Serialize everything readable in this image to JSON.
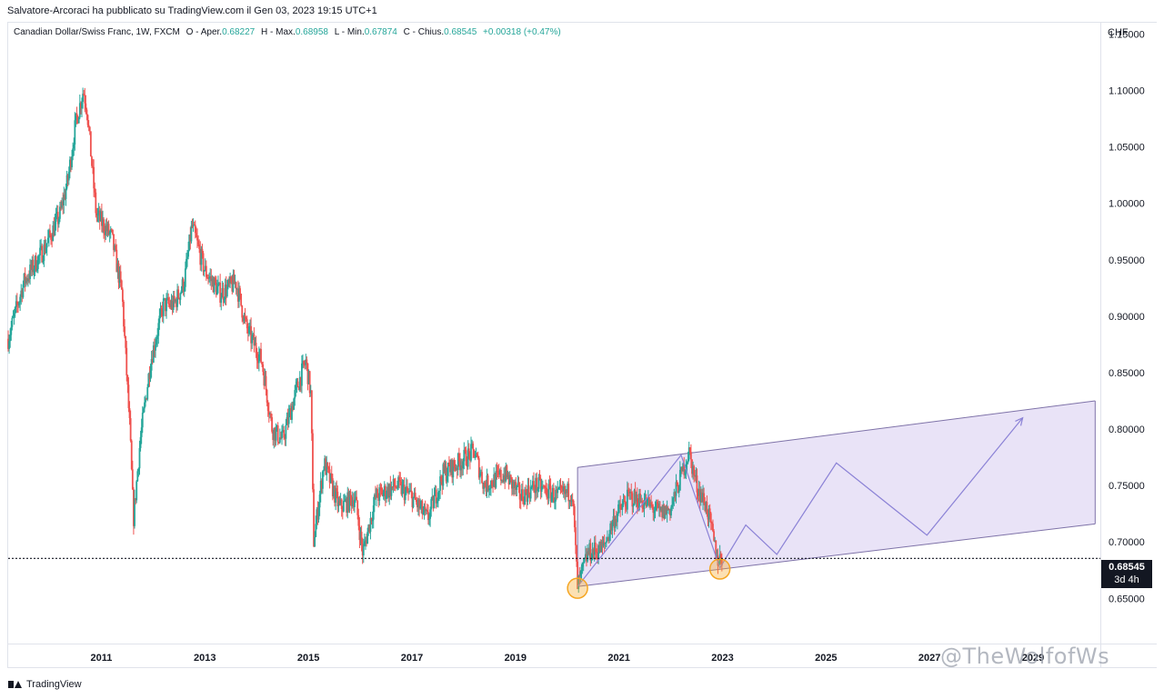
{
  "header": {
    "attribution": "Salvatore-Arcoraci ha pubblicato su TradingView.com il Gen 03, 2023 19:15 UTC+1"
  },
  "legend": {
    "symbol": "Canadian Dollar/Swiss Franc, 1W, FXCM",
    "open_label": "O - Aper.",
    "open": "0.68227",
    "high_label": "H - Max.",
    "high": "0.68958",
    "low_label": "L - Min.",
    "low": "0.67874",
    "close_label": "C - Chius.",
    "close": "0.68545",
    "change": "+0.00318 (+0.47%)"
  },
  "price_axis": {
    "currency": "CHF",
    "labels": [
      "1.15000",
      "1.10000",
      "1.05000",
      "1.00000",
      "0.95000",
      "0.90000",
      "0.85000",
      "0.80000",
      "0.75000",
      "0.70000",
      "0.65000"
    ],
    "last_price": "0.68545",
    "countdown": "3d 4h"
  },
  "time_axis": {
    "labels": [
      "2011",
      "2013",
      "2015",
      "2017",
      "2019",
      "2021",
      "2023",
      "2025",
      "2027",
      "2029"
    ]
  },
  "footer": {
    "logo_text": "TradingView",
    "watermark": "@TheWolfofWs"
  },
  "colors": {
    "up": "#26a69a",
    "down": "#ef5350",
    "channel_fill": "#e7e0f6",
    "channel_line": "#7e72a8",
    "projection": "#8b82d6",
    "circle": "#f5a623",
    "last_price_line": "#131722"
  },
  "chart_data": {
    "type": "candlestick",
    "title": "Canadian Dollar/Swiss Franc, 1W, FXCM",
    "ylabel": "CHF",
    "ylim": [
      0.61,
      1.16
    ],
    "xlim": [
      2009.2,
      2030.3
    ],
    "last_close": 0.68545,
    "price_path": [
      [
        2009.2,
        0.88
      ],
      [
        2009.5,
        0.93
      ],
      [
        2009.9,
        0.96
      ],
      [
        2010.2,
        0.99
      ],
      [
        2010.35,
        1.02
      ],
      [
        2010.5,
        1.07
      ],
      [
        2010.65,
        1.1
      ],
      [
        2010.72,
        1.085
      ],
      [
        2010.9,
        0.99
      ],
      [
        2011.2,
        0.97
      ],
      [
        2011.4,
        0.92
      ],
      [
        2011.55,
        0.8
      ],
      [
        2011.62,
        0.72
      ],
      [
        2011.75,
        0.79
      ],
      [
        2011.95,
        0.86
      ],
      [
        2012.2,
        0.91
      ],
      [
        2012.4,
        0.91
      ],
      [
        2012.6,
        0.93
      ],
      [
        2012.75,
        0.98
      ],
      [
        2013.0,
        0.94
      ],
      [
        2013.3,
        0.92
      ],
      [
        2013.6,
        0.93
      ],
      [
        2013.8,
        0.89
      ],
      [
        2014.1,
        0.86
      ],
      [
        2014.3,
        0.8
      ],
      [
        2014.5,
        0.79
      ],
      [
        2014.8,
        0.84
      ],
      [
        2014.95,
        0.86
      ],
      [
        2015.05,
        0.83
      ],
      [
        2015.1,
        0.7
      ],
      [
        2015.3,
        0.77
      ],
      [
        2015.6,
        0.73
      ],
      [
        2015.9,
        0.74
      ],
      [
        2016.05,
        0.69
      ],
      [
        2016.3,
        0.74
      ],
      [
        2016.7,
        0.75
      ],
      [
        2017.0,
        0.74
      ],
      [
        2017.3,
        0.72
      ],
      [
        2017.6,
        0.76
      ],
      [
        2017.9,
        0.77
      ],
      [
        2018.2,
        0.78
      ],
      [
        2018.4,
        0.75
      ],
      [
        2018.8,
        0.76
      ],
      [
        2019.1,
        0.74
      ],
      [
        2019.4,
        0.75
      ],
      [
        2019.8,
        0.74
      ],
      [
        2020.1,
        0.745
      ],
      [
        2020.2,
        0.66
      ],
      [
        2020.4,
        0.69
      ],
      [
        2020.7,
        0.695
      ],
      [
        2020.9,
        0.72
      ],
      [
        2021.2,
        0.74
      ],
      [
        2021.5,
        0.735
      ],
      [
        2021.8,
        0.725
      ],
      [
        2022.0,
        0.73
      ],
      [
        2022.35,
        0.78
      ],
      [
        2022.5,
        0.75
      ],
      [
        2022.7,
        0.73
      ],
      [
        2022.9,
        0.685
      ],
      [
        2023.0,
        0.68545
      ]
    ],
    "channel": {
      "upper": [
        [
          2020.2,
          0.766
        ],
        [
          2030.2,
          0.825
        ]
      ],
      "lower": [
        [
          2020.2,
          0.6605
        ],
        [
          2030.2,
          0.716
        ]
      ]
    },
    "projection_path": [
      [
        2020.2,
        0.6605
      ],
      [
        2022.2,
        0.777
      ],
      [
        2022.95,
        0.677
      ],
      [
        2023.45,
        0.715
      ],
      [
        2024.05,
        0.689
      ],
      [
        2025.2,
        0.77
      ],
      [
        2026.95,
        0.706
      ],
      [
        2028.8,
        0.81
      ]
    ],
    "highlight_circles": [
      [
        2020.2,
        0.659
      ],
      [
        2022.95,
        0.676
      ]
    ]
  }
}
